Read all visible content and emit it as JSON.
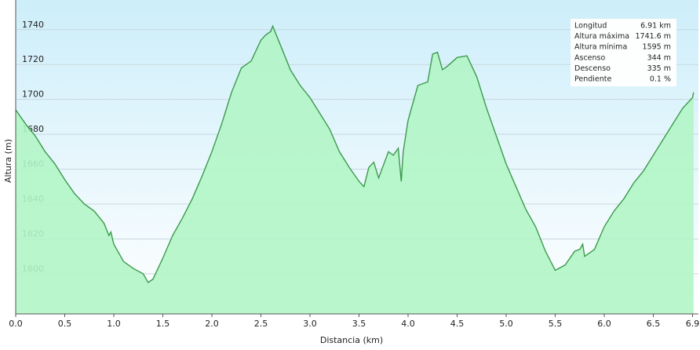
{
  "chart_data": {
    "type": "area",
    "x_label": "Distancia (km)",
    "y_label": "Altura (m)",
    "x": [
      0,
      0.1,
      0.2,
      0.3,
      0.4,
      0.5,
      0.6,
      0.7,
      0.8,
      0.9,
      0.95,
      0.97,
      1.0,
      1.1,
      1.2,
      1.3,
      1.35,
      1.4,
      1.5,
      1.6,
      1.7,
      1.8,
      1.9,
      2.0,
      2.1,
      2.2,
      2.3,
      2.4,
      2.5,
      2.55,
      2.6,
      2.62,
      2.7,
      2.8,
      2.9,
      3.0,
      3.1,
      3.2,
      3.3,
      3.4,
      3.5,
      3.55,
      3.6,
      3.65,
      3.7,
      3.8,
      3.85,
      3.9,
      3.93,
      3.95,
      4.0,
      4.1,
      4.2,
      4.25,
      4.3,
      4.35,
      4.4,
      4.5,
      4.6,
      4.7,
      4.8,
      4.9,
      5.0,
      5.1,
      5.2,
      5.3,
      5.4,
      5.5,
      5.6,
      5.7,
      5.75,
      5.78,
      5.8,
      5.9,
      6.0,
      6.1,
      6.2,
      6.3,
      6.4,
      6.5,
      6.6,
      6.7,
      6.8,
      6.9,
      6.91
    ],
    "values": [
      1694,
      1686,
      1679,
      1670,
      1663,
      1654,
      1646,
      1640,
      1636,
      1629,
      1622,
      1624,
      1617,
      1607,
      1603,
      1600,
      1595,
      1597,
      1609,
      1622,
      1632,
      1643,
      1656,
      1670,
      1686,
      1704,
      1718,
      1722,
      1734,
      1737,
      1739,
      1742,
      1731,
      1717,
      1708,
      1701,
      1692,
      1683,
      1670,
      1661,
      1653,
      1650,
      1661,
      1664,
      1655,
      1670,
      1668,
      1672,
      1653,
      1670,
      1688,
      1708,
      1710,
      1726,
      1727,
      1717,
      1719,
      1724,
      1725,
      1713,
      1695,
      1679,
      1663,
      1650,
      1637,
      1627,
      1613,
      1602,
      1605,
      1613,
      1614,
      1617,
      1610,
      1614,
      1627,
      1636,
      1643,
      1652,
      1659,
      1668,
      1677,
      1686,
      1695,
      1701,
      1704
    ],
    "line_color": "#3c9a4c",
    "fill_color": "#b3f5c6",
    "xlim": [
      0,
      6.96
    ],
    "ylim": [
      1577,
      1757
    ],
    "xticks": [
      {
        "value": 0,
        "label": "0.0"
      },
      0.5,
      {
        "value": 1,
        "label": "1.0"
      },
      1.5,
      {
        "value": 2,
        "label": "2.0"
      },
      2.5,
      {
        "value": 3,
        "label": "3.0"
      },
      3.5,
      {
        "value": 4,
        "label": "4.0"
      },
      4.5,
      {
        "value": 5,
        "label": "5.0"
      },
      5.5,
      {
        "value": 6,
        "label": "6.0"
      },
      6.5,
      6.9
    ],
    "yticks": [
      1600,
      1620,
      1640,
      1660,
      1680,
      1700,
      1720,
      1740
    ],
    "grid": true,
    "stats": [
      {
        "label": "Longitud",
        "value": "6.91 km"
      },
      {
        "label": "Altura máxima",
        "value": "1741.6 m"
      },
      {
        "label": "Altura mínima",
        "value": "1595 m"
      },
      {
        "label": "Ascenso",
        "value": "344 m"
      },
      {
        "label": "Descenso",
        "value": "335 m"
      },
      {
        "label": "Pendiente",
        "value": "0.1 %"
      }
    ]
  }
}
